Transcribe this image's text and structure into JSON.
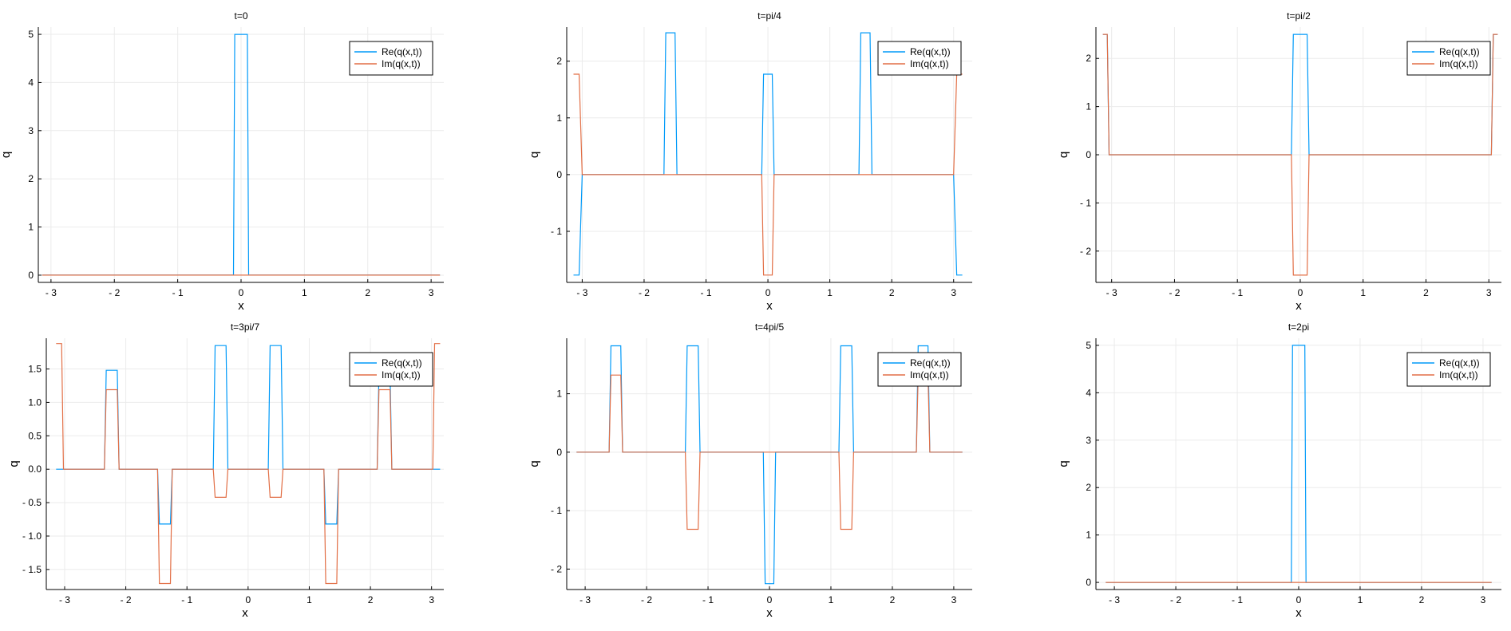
{
  "colors": {
    "re": "#009af9",
    "im": "#e26f46"
  },
  "chart_data": [
    {
      "type": "line",
      "title": "t=0",
      "xlabel": "x",
      "ylabel": "q",
      "xlim": [
        -3.2,
        3.2
      ],
      "ylim": [
        -0.15,
        5.15
      ],
      "xticks": [
        -3,
        -2,
        -1,
        0,
        1,
        2,
        3
      ],
      "yticks": [
        0,
        1,
        2,
        3,
        4,
        5
      ],
      "grid": true,
      "legend": "top-right",
      "series": [
        {
          "name": "Re(q(x,t))",
          "color": "#009af9",
          "x": [
            -3.14,
            -0.12,
            -0.1,
            0.1,
            0.12,
            3.14
          ],
          "y": [
            0,
            0,
            5,
            5,
            0,
            0
          ]
        },
        {
          "name": "Im(q(x,t))",
          "color": "#e26f46",
          "x": [
            -3.14,
            3.14
          ],
          "y": [
            0,
            0
          ]
        }
      ]
    },
    {
      "type": "line",
      "title": "t=pi/4",
      "xlabel": "x",
      "ylabel": "q",
      "xlim": [
        -3.25,
        3.3
      ],
      "ylim": [
        -1.9,
        2.6
      ],
      "xticks": [
        -3,
        -2,
        -1,
        0,
        1,
        2,
        3
      ],
      "yticks": [
        -1,
        0,
        1,
        2
      ],
      "grid": true,
      "legend": "top-right",
      "series": [
        {
          "name": "Re(q(x,t))",
          "color": "#009af9",
          "x": [
            -3.14,
            -3.05,
            -3.0,
            -1.68,
            -1.65,
            -1.5,
            -1.47,
            -0.1,
            -0.07,
            0.07,
            0.1,
            1.47,
            1.5,
            1.65,
            1.68,
            3.0,
            3.05,
            3.14
          ],
          "y": [
            -1.77,
            -1.77,
            0,
            0,
            2.5,
            2.5,
            0,
            0,
            1.77,
            1.77,
            0,
            0,
            2.5,
            2.5,
            0,
            0,
            -1.77,
            -1.77
          ]
        },
        {
          "name": "Im(q(x,t))",
          "color": "#e26f46",
          "x": [
            -3.14,
            -3.05,
            -3.0,
            -0.1,
            -0.07,
            0.07,
            0.1,
            3.0,
            3.05,
            3.14
          ],
          "y": [
            1.77,
            1.77,
            0,
            0,
            -1.77,
            -1.77,
            0,
            0,
            1.77,
            1.77
          ]
        }
      ]
    },
    {
      "type": "line",
      "title": "t=pi/2",
      "xlabel": "x",
      "ylabel": "q",
      "xlim": [
        -3.25,
        3.2
      ],
      "ylim": [
        -2.65,
        2.65
      ],
      "xticks": [
        -3,
        -2,
        -1,
        0,
        1,
        2,
        3
      ],
      "yticks": [
        -2,
        -1,
        0,
        1,
        2
      ],
      "grid": true,
      "legend": "top-right",
      "series": [
        {
          "name": "Re(q(x,t))",
          "color": "#009af9",
          "x": [
            -3.14,
            -3.07,
            -3.04,
            -0.14,
            -0.11,
            0.11,
            0.14,
            3.04,
            3.07,
            3.14
          ],
          "y": [
            2.5,
            2.5,
            0,
            0,
            2.5,
            2.5,
            0,
            0,
            2.5,
            2.5
          ]
        },
        {
          "name": "Im(q(x,t))",
          "color": "#e26f46",
          "x": [
            -3.14,
            -3.07,
            -3.04,
            -0.14,
            -0.11,
            0.11,
            0.14,
            3.04,
            3.07,
            3.14
          ],
          "y": [
            2.5,
            2.5,
            0,
            0,
            -2.5,
            -2.5,
            0,
            0,
            2.5,
            2.5
          ]
        }
      ]
    },
    {
      "type": "line",
      "title": "t=3pi/7",
      "xlabel": "x",
      "ylabel": "q",
      "xlim": [
        -3.3,
        3.2
      ],
      "ylim": [
        -1.8,
        1.96
      ],
      "xticks": [
        -3,
        -2,
        -1,
        0,
        1,
        2,
        3
      ],
      "yticks": [
        -1.5,
        -1.0,
        -0.5,
        0.0,
        0.5,
        1.0,
        1.5
      ],
      "grid": true,
      "legend": "top-right",
      "series": [
        {
          "name": "Re(q(x,t))",
          "color": "#009af9",
          "x": [
            -3.14,
            -2.35,
            -2.32,
            -2.14,
            -2.11,
            -1.48,
            -1.45,
            -1.27,
            -1.24,
            -0.57,
            -0.54,
            -0.36,
            -0.33,
            0.33,
            0.36,
            0.54,
            0.57,
            1.24,
            1.27,
            1.45,
            1.48,
            2.11,
            2.14,
            2.32,
            2.35,
            3.14
          ],
          "y": [
            0,
            0,
            1.48,
            1.48,
            0,
            0,
            -0.82,
            -0.82,
            0,
            0,
            1.85,
            1.85,
            0,
            0,
            1.85,
            1.85,
            0,
            0,
            -0.82,
            -0.82,
            0,
            0,
            1.48,
            1.48,
            0,
            0
          ]
        },
        {
          "name": "Im(q(x,t))",
          "color": "#e26f46",
          "x": [
            -3.14,
            -3.05,
            -3.02,
            -2.35,
            -2.32,
            -2.14,
            -2.11,
            -1.48,
            -1.45,
            -1.27,
            -1.24,
            -0.57,
            -0.54,
            -0.36,
            -0.33,
            0.33,
            0.36,
            0.54,
            0.57,
            1.24,
            1.27,
            1.45,
            1.48,
            2.11,
            2.14,
            2.32,
            2.35,
            3.02,
            3.05,
            3.14
          ],
          "y": [
            1.88,
            1.88,
            0,
            0,
            1.19,
            1.19,
            0,
            0,
            -1.71,
            -1.71,
            0,
            0,
            -0.42,
            -0.42,
            0,
            0,
            -0.42,
            -0.42,
            0,
            0,
            -1.71,
            -1.71,
            0,
            0,
            1.19,
            1.19,
            0,
            0,
            1.88,
            1.88
          ]
        }
      ]
    },
    {
      "type": "line",
      "title": "t=4pi/5",
      "xlabel": "x",
      "ylabel": "q",
      "xlim": [
        -3.3,
        3.3
      ],
      "ylim": [
        -2.35,
        1.95
      ],
      "xticks": [
        -3,
        -2,
        -1,
        0,
        1,
        2,
        3
      ],
      "yticks": [
        -2,
        -1,
        0,
        1
      ],
      "grid": true,
      "legend": "top-right",
      "series": [
        {
          "name": "Re(q(x,t))",
          "color": "#009af9",
          "x": [
            -3.14,
            -2.61,
            -2.58,
            -2.42,
            -2.39,
            -1.37,
            -1.34,
            -1.16,
            -1.13,
            -0.1,
            -0.07,
            0.07,
            0.1,
            1.13,
            1.16,
            1.34,
            1.37,
            2.39,
            2.42,
            2.58,
            2.61,
            3.14
          ],
          "y": [
            0,
            0,
            1.82,
            1.82,
            0,
            0,
            1.82,
            1.82,
            0,
            0,
            -2.25,
            -2.25,
            0,
            0,
            1.82,
            1.82,
            0,
            0,
            1.82,
            1.82,
            0,
            0
          ]
        },
        {
          "name": "Im(q(x,t))",
          "color": "#e26f46",
          "x": [
            -3.14,
            -2.61,
            -2.58,
            -2.42,
            -2.39,
            -1.37,
            -1.34,
            -1.16,
            -1.13,
            1.13,
            1.16,
            1.34,
            1.37,
            2.39,
            2.42,
            2.58,
            2.61,
            3.14
          ],
          "y": [
            0,
            0,
            1.32,
            1.32,
            0,
            0,
            -1.32,
            -1.32,
            0,
            0,
            -1.32,
            -1.32,
            0,
            0,
            1.32,
            1.32,
            0,
            0
          ]
        }
      ]
    },
    {
      "type": "line",
      "title": "t=2pi",
      "xlabel": "x",
      "ylabel": "q",
      "xlim": [
        -3.3,
        3.3
      ],
      "ylim": [
        -0.15,
        5.15
      ],
      "xticks": [
        -3,
        -2,
        -1,
        0,
        1,
        2,
        3
      ],
      "yticks": [
        0,
        1,
        2,
        3,
        4,
        5
      ],
      "grid": true,
      "legend": "top-right",
      "series": [
        {
          "name": "Re(q(x,t))",
          "color": "#009af9",
          "x": [
            -3.14,
            -0.12,
            -0.1,
            0.1,
            0.12,
            3.14
          ],
          "y": [
            0,
            0,
            5,
            5,
            0,
            0
          ]
        },
        {
          "name": "Im(q(x,t))",
          "color": "#e26f46",
          "x": [
            -3.14,
            3.14
          ],
          "y": [
            0,
            0
          ]
        }
      ]
    }
  ]
}
